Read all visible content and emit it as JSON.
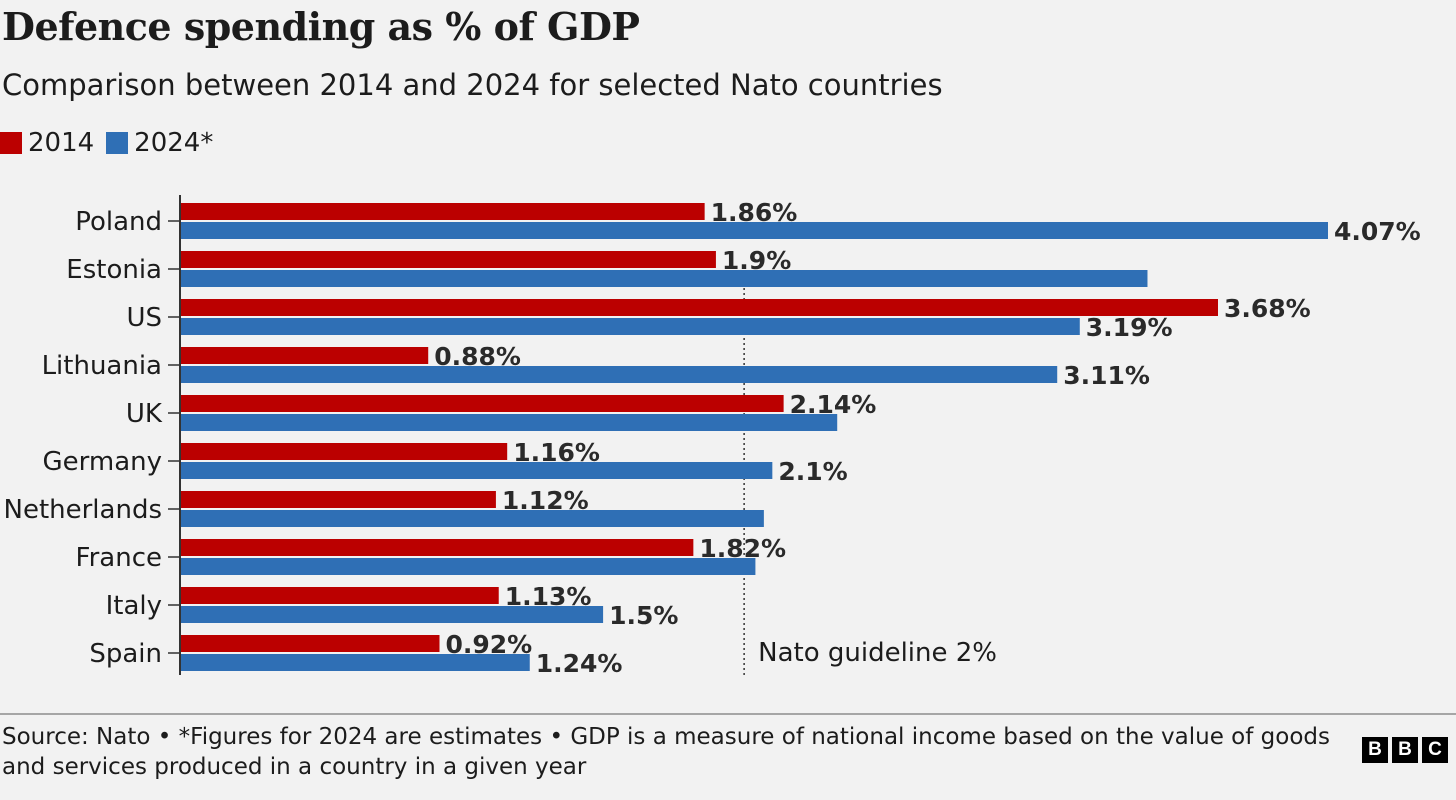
{
  "title": "Defence spending as % of GDP",
  "subtitle": "Comparison between 2014 and 2024 for selected Nato countries",
  "legend": [
    {
      "label": "2014",
      "color": "#bb0000"
    },
    {
      "label": "2024*",
      "color": "#2f6fb5"
    }
  ],
  "footnote": "Source: Nato • *Figures for 2024 are estimates • GDP is a measure of national income based on the value of goods and services produced in a country in a given year",
  "logo": [
    "B",
    "B",
    "C"
  ],
  "chart_data": {
    "type": "bar",
    "orientation": "horizontal",
    "title": "Defence spending as % of GDP",
    "subtitle": "Comparison between 2014 and 2024 for selected Nato countries",
    "categories": [
      "Poland",
      "Estonia",
      "US",
      "Lithuania",
      "UK",
      "Germany",
      "Netherlands",
      "France",
      "Italy",
      "Spain"
    ],
    "series": [
      {
        "name": "2014",
        "color": "#bb0000",
        "values": [
          1.86,
          1.9,
          3.68,
          0.88,
          2.14,
          1.16,
          1.12,
          1.82,
          1.13,
          0.92
        ],
        "labels": [
          "1.86%",
          "1.9%",
          "3.68%",
          "0.88%",
          "2.14%",
          "1.16%",
          "1.12%",
          "1.82%",
          "1.13%",
          "0.92%"
        ]
      },
      {
        "name": "2024*",
        "color": "#2f6fb5",
        "values": [
          4.07,
          3.43,
          3.19,
          3.11,
          2.33,
          2.1,
          2.07,
          2.04,
          1.5,
          1.24
        ],
        "labels": [
          "4.07%",
          "",
          "3.19%",
          "3.11%",
          "",
          "2.1%",
          "",
          "",
          "1.5%",
          "1.24%"
        ]
      }
    ],
    "xlim": [
      0,
      4.07
    ],
    "grid": false,
    "legend_position": "top-left",
    "reference_line": {
      "value": 2,
      "label": "Nato guideline 2%"
    }
  }
}
